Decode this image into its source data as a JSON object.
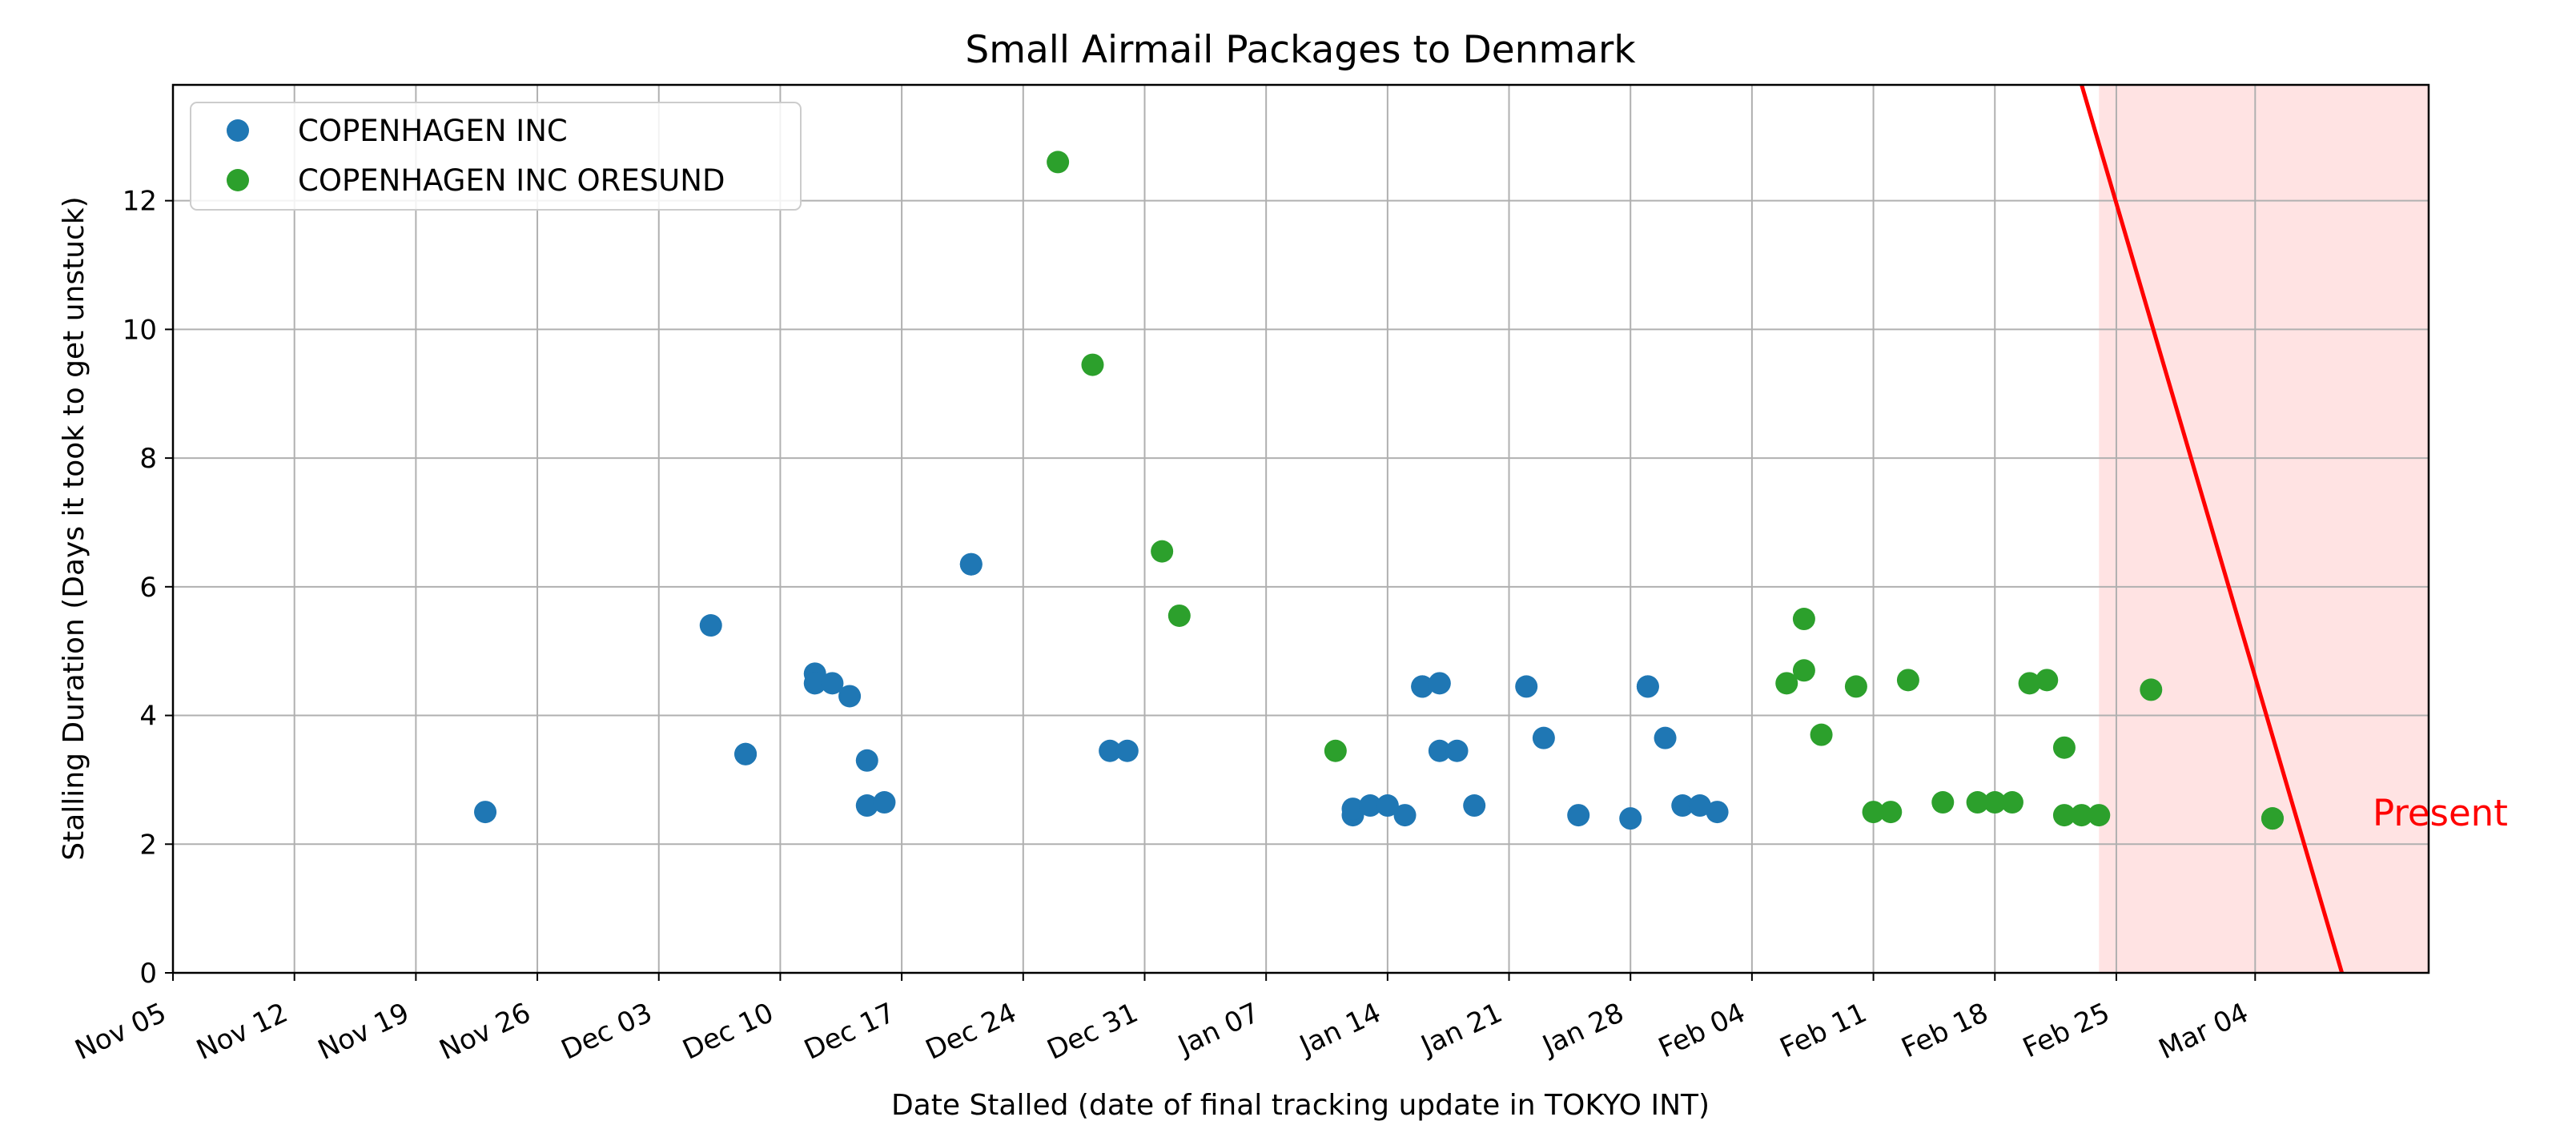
{
  "chart_data": {
    "type": "scatter",
    "title": "Small Airmail Packages to Denmark",
    "xlabel": "Date Stalled (date of final tracking update in TOKYO INT)",
    "ylabel": "Stalling Duration (Days it took to get unstuck)",
    "x_axis": "date",
    "xlim": [
      "2023-11-05",
      "2024-03-14"
    ],
    "ylim": [
      0,
      13.8
    ],
    "x_ticks": [
      "2023-11-05",
      "2023-11-12",
      "2023-11-19",
      "2023-11-26",
      "2023-12-03",
      "2023-12-10",
      "2023-12-17",
      "2023-12-24",
      "2023-12-31",
      "2024-01-07",
      "2024-01-14",
      "2024-01-21",
      "2024-01-28",
      "2024-02-04",
      "2024-02-11",
      "2024-02-18",
      "2024-02-25",
      "2024-03-04"
    ],
    "x_tick_labels": [
      "Nov 05",
      "Nov 12",
      "Nov 19",
      "Nov 26",
      "Dec 03",
      "Dec 10",
      "Dec 17",
      "Dec 24",
      "Dec 31",
      "Jan 07",
      "Jan 14",
      "Jan 21",
      "Jan 28",
      "Feb 04",
      "Feb 11",
      "Feb 18",
      "Feb 25",
      "Mar 04"
    ],
    "y_ticks": [
      0,
      2,
      4,
      6,
      8,
      10,
      12
    ],
    "y_tick_labels": [
      "0",
      "2",
      "4",
      "6",
      "8",
      "10",
      "12"
    ],
    "grid": true,
    "legend_position": "top-left",
    "series": [
      {
        "name": "COPENHAGEN INC",
        "color": "#1f77b4",
        "points": [
          {
            "x": "2023-11-23",
            "y": 2.5
          },
          {
            "x": "2023-12-06",
            "y": 5.4
          },
          {
            "x": "2023-12-08",
            "y": 3.4
          },
          {
            "x": "2023-12-08",
            "y": 3.4
          },
          {
            "x": "2023-12-12",
            "y": 4.65
          },
          {
            "x": "2023-12-12",
            "y": 4.5
          },
          {
            "x": "2023-12-13",
            "y": 4.5
          },
          {
            "x": "2023-12-14",
            "y": 4.3
          },
          {
            "x": "2023-12-15",
            "y": 3.3
          },
          {
            "x": "2023-12-15",
            "y": 2.6
          },
          {
            "x": "2023-12-16",
            "y": 2.65
          },
          {
            "x": "2023-12-21",
            "y": 6.35
          },
          {
            "x": "2023-12-21",
            "y": 6.35
          },
          {
            "x": "2023-12-29",
            "y": 3.45
          },
          {
            "x": "2023-12-30",
            "y": 3.45
          },
          {
            "x": "2024-01-12",
            "y": 2.45
          },
          {
            "x": "2024-01-12",
            "y": 2.55
          },
          {
            "x": "2024-01-13",
            "y": 2.6
          },
          {
            "x": "2024-01-14",
            "y": 2.6
          },
          {
            "x": "2024-01-15",
            "y": 2.45
          },
          {
            "x": "2024-01-16",
            "y": 4.45
          },
          {
            "x": "2024-01-16",
            "y": 4.45
          },
          {
            "x": "2024-01-17",
            "y": 4.5
          },
          {
            "x": "2024-01-17",
            "y": 3.45
          },
          {
            "x": "2024-01-18",
            "y": 3.45
          },
          {
            "x": "2024-01-19",
            "y": 2.6
          },
          {
            "x": "2024-01-22",
            "y": 4.45
          },
          {
            "x": "2024-01-23",
            "y": 3.65
          },
          {
            "x": "2024-01-25",
            "y": 2.45
          },
          {
            "x": "2024-01-28",
            "y": 2.4
          },
          {
            "x": "2024-01-29",
            "y": 4.45
          },
          {
            "x": "2024-01-29",
            "y": 4.45
          },
          {
            "x": "2024-01-30",
            "y": 3.65
          },
          {
            "x": "2024-01-31",
            "y": 2.6
          },
          {
            "x": "2024-02-01",
            "y": 2.6
          },
          {
            "x": "2024-02-02",
            "y": 2.5
          }
        ]
      },
      {
        "name": "COPENHAGEN INC ORESUND",
        "color": "#2ca02c",
        "points": [
          {
            "x": "2023-12-26",
            "y": 12.6
          },
          {
            "x": "2023-12-28",
            "y": 9.45
          },
          {
            "x": "2024-01-01",
            "y": 6.55
          },
          {
            "x": "2024-01-02",
            "y": 5.55
          },
          {
            "x": "2024-01-11",
            "y": 3.45
          },
          {
            "x": "2024-02-06",
            "y": 4.5
          },
          {
            "x": "2024-02-07",
            "y": 4.7
          },
          {
            "x": "2024-02-07",
            "y": 5.5
          },
          {
            "x": "2024-02-08",
            "y": 3.7
          },
          {
            "x": "2024-02-10",
            "y": 4.45
          },
          {
            "x": "2024-02-11",
            "y": 2.5
          },
          {
            "x": "2024-02-12",
            "y": 2.5
          },
          {
            "x": "2024-02-13",
            "y": 4.55
          },
          {
            "x": "2024-02-15",
            "y": 2.65
          },
          {
            "x": "2024-02-17",
            "y": 2.65
          },
          {
            "x": "2024-02-18",
            "y": 2.65
          },
          {
            "x": "2024-02-19",
            "y": 2.65
          },
          {
            "x": "2024-02-20",
            "y": 4.5
          },
          {
            "x": "2024-02-21",
            "y": 4.55
          },
          {
            "x": "2024-02-22",
            "y": 3.5
          },
          {
            "x": "2024-02-22",
            "y": 2.45
          },
          {
            "x": "2024-02-23",
            "y": 2.45
          },
          {
            "x": "2024-02-24",
            "y": 2.45
          },
          {
            "x": "2024-02-27",
            "y": 4.4
          },
          {
            "x": "2024-03-05",
            "y": 2.4
          },
          {
            "x": "2024-03-05",
            "y": 2.4
          }
        ]
      }
    ],
    "annotations": [
      {
        "text": "Present",
        "color": "#ff0000",
        "shaded_region": {
          "x_start": "2024-02-24",
          "x_end": "2024-03-14",
          "color": "#ffcccc"
        },
        "line": {
          "x_at_top": "2024-02-23",
          "x_at_zero": "2024-03-09",
          "color": "#ff0000"
        }
      }
    ]
  }
}
